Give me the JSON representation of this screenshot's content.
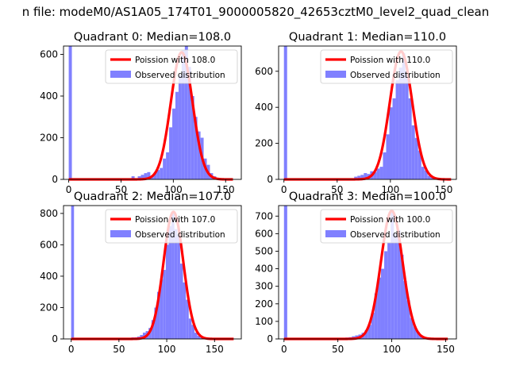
{
  "suptitle": "n file: modeM0/AS1A05_174T01_9000005820_42653cztM0_level2_quad_clean",
  "chart_data": [
    {
      "type": "bar",
      "title": "Quadrant 0: Median=108.0",
      "median": 108.0,
      "xlim": [
        -5,
        165
      ],
      "ylim": [
        0,
        640
      ],
      "xticks": [
        0,
        50,
        100,
        150
      ],
      "yticks": [
        0,
        200,
        400,
        600
      ],
      "legend": {
        "placement": "upper right",
        "entries": [
          "Poission with 108.0",
          "Observed distribution"
        ]
      },
      "series": [
        {
          "name": "Observed distribution",
          "kind": "histogram",
          "color": "#8080ff",
          "bins": [
            [
              0,
              3,
              640
            ],
            [
              60,
              63,
              15
            ],
            [
              66,
              69,
              15
            ],
            [
              69,
              72,
              22
            ],
            [
              72,
              75,
              30
            ],
            [
              75,
              78,
              35
            ],
            [
              78,
              81,
              15
            ],
            [
              81,
              84,
              32
            ],
            [
              84,
              87,
              45
            ],
            [
              87,
              90,
              55
            ],
            [
              90,
              93,
              100
            ],
            [
              93,
              96,
              130
            ],
            [
              96,
              99,
              250
            ],
            [
              99,
              102,
              340
            ],
            [
              102,
              105,
              420
            ],
            [
              105,
              108,
              500
            ],
            [
              108,
              111,
              620
            ],
            [
              111,
              114,
              640
            ],
            [
              114,
              117,
              540
            ],
            [
              117,
              120,
              400
            ],
            [
              120,
              123,
              300
            ],
            [
              123,
              126,
              230
            ],
            [
              126,
              129,
              200
            ],
            [
              129,
              132,
              100
            ],
            [
              132,
              135,
              70
            ],
            [
              135,
              138,
              30
            ],
            [
              138,
              141,
              15
            ],
            [
              141,
              144,
              8
            ],
            [
              144,
              147,
              4
            ]
          ]
        },
        {
          "name": "Poission with 108.0",
          "kind": "curve",
          "color": "#ff0000",
          "lambda": 108.0,
          "peak": 610,
          "x_range": [
            0,
            157
          ]
        }
      ]
    },
    {
      "type": "bar",
      "title": "Quadrant 1: Median=110.0",
      "median": 110.0,
      "xlim": [
        -5,
        162
      ],
      "ylim": [
        0,
        740
      ],
      "xticks": [
        0,
        50,
        100,
        150
      ],
      "yticks": [
        0,
        200,
        400,
        600
      ],
      "legend": {
        "placement": "upper right",
        "entries": [
          "Poission with 110.0",
          "Observed distribution"
        ]
      },
      "series": [
        {
          "name": "Observed distribution",
          "kind": "histogram",
          "color": "#8080ff",
          "bins": [
            [
              0,
              3,
              740
            ],
            [
              66,
              69,
              15
            ],
            [
              69,
              72,
              20
            ],
            [
              72,
              75,
              25
            ],
            [
              75,
              78,
              35
            ],
            [
              78,
              81,
              30
            ],
            [
              81,
              84,
              45
            ],
            [
              84,
              87,
              40
            ],
            [
              87,
              90,
              60
            ],
            [
              90,
              93,
              70
            ],
            [
              93,
              96,
              150
            ],
            [
              96,
              99,
              250
            ],
            [
              99,
              102,
              400
            ],
            [
              102,
              105,
              450
            ],
            [
              105,
              108,
              550
            ],
            [
              108,
              111,
              620
            ],
            [
              111,
              114,
              700
            ],
            [
              114,
              117,
              600
            ],
            [
              117,
              120,
              450
            ],
            [
              120,
              123,
              300
            ],
            [
              123,
              126,
              230
            ],
            [
              126,
              129,
              160
            ],
            [
              129,
              132,
              70
            ],
            [
              132,
              135,
              50
            ],
            [
              135,
              138,
              20
            ],
            [
              138,
              141,
              10
            ],
            [
              141,
              144,
              5
            ]
          ]
        },
        {
          "name": "Poission with 110.0",
          "kind": "curve",
          "color": "#ff0000",
          "lambda": 110.0,
          "peak": 710,
          "x_range": [
            0,
            157
          ]
        }
      ]
    },
    {
      "type": "bar",
      "title": "Quadrant 2: Median=107.0",
      "median": 107.0,
      "xlim": [
        -8,
        178
      ],
      "ylim": [
        0,
        850
      ],
      "xticks": [
        0,
        50,
        100,
        150
      ],
      "yticks": [
        0,
        200,
        400,
        600,
        800
      ],
      "legend": {
        "placement": "upper right",
        "entries": [
          "Poission with 107.0",
          "Observed distribution"
        ]
      },
      "series": [
        {
          "name": "Observed distribution",
          "kind": "histogram",
          "color": "#8080ff",
          "bins": [
            [
              0,
              3,
              850
            ],
            [
              63,
              66,
              10
            ],
            [
              66,
              69,
              10
            ],
            [
              69,
              72,
              15
            ],
            [
              72,
              75,
              25
            ],
            [
              75,
              78,
              40
            ],
            [
              78,
              81,
              50
            ],
            [
              81,
              84,
              70
            ],
            [
              84,
              87,
              120
            ],
            [
              87,
              90,
              200
            ],
            [
              90,
              93,
              300
            ],
            [
              93,
              96,
              380
            ],
            [
              96,
              99,
              440
            ],
            [
              99,
              102,
              600
            ],
            [
              102,
              105,
              720
            ],
            [
              105,
              108,
              800
            ],
            [
              108,
              111,
              700
            ],
            [
              111,
              114,
              660
            ],
            [
              114,
              117,
              480
            ],
            [
              117,
              120,
              360
            ],
            [
              120,
              123,
              250
            ],
            [
              123,
              126,
              130
            ],
            [
              126,
              129,
              90
            ],
            [
              129,
              132,
              40
            ],
            [
              132,
              135,
              20
            ],
            [
              135,
              138,
              8
            ]
          ]
        },
        {
          "name": "Poission with 107.0",
          "kind": "curve",
          "color": "#ff0000",
          "lambda": 107.0,
          "peak": 810,
          "x_range": [
            0,
            170
          ]
        }
      ]
    },
    {
      "type": "bar",
      "title": "Quadrant 3: Median=100.0",
      "median": 100.0,
      "xlim": [
        -5,
        160
      ],
      "ylim": [
        0,
        760
      ],
      "xticks": [
        0,
        50,
        100,
        150
      ],
      "yticks": [
        0,
        100,
        200,
        300,
        400,
        500,
        600,
        700
      ],
      "legend": {
        "placement": "upper right",
        "entries": [
          "Poission with 100.0",
          "Observed distribution"
        ]
      },
      "series": [
        {
          "name": "Observed distribution",
          "kind": "histogram",
          "color": "#8080ff",
          "bins": [
            [
              0,
              3,
              760
            ],
            [
              54,
              57,
              5
            ],
            [
              57,
              60,
              8
            ],
            [
              60,
              63,
              10
            ],
            [
              63,
              66,
              15
            ],
            [
              66,
              69,
              20
            ],
            [
              69,
              72,
              25
            ],
            [
              72,
              75,
              35
            ],
            [
              75,
              78,
              50
            ],
            [
              78,
              81,
              80
            ],
            [
              81,
              84,
              150
            ],
            [
              84,
              87,
              260
            ],
            [
              87,
              90,
              350
            ],
            [
              90,
              93,
              400
            ],
            [
              93,
              96,
              500
            ],
            [
              96,
              99,
              550
            ],
            [
              99,
              102,
              720
            ],
            [
              102,
              105,
              600
            ],
            [
              105,
              108,
              620
            ],
            [
              108,
              111,
              480
            ],
            [
              111,
              114,
              330
            ],
            [
              114,
              117,
              220
            ],
            [
              117,
              120,
              120
            ],
            [
              120,
              123,
              70
            ],
            [
              123,
              126,
              40
            ],
            [
              126,
              129,
              20
            ],
            [
              129,
              132,
              10
            ]
          ]
        },
        {
          "name": "Poission with 100.0",
          "kind": "curve",
          "color": "#ff0000",
          "lambda": 100.0,
          "peak": 730,
          "x_range": [
            0,
            152
          ]
        }
      ]
    }
  ]
}
